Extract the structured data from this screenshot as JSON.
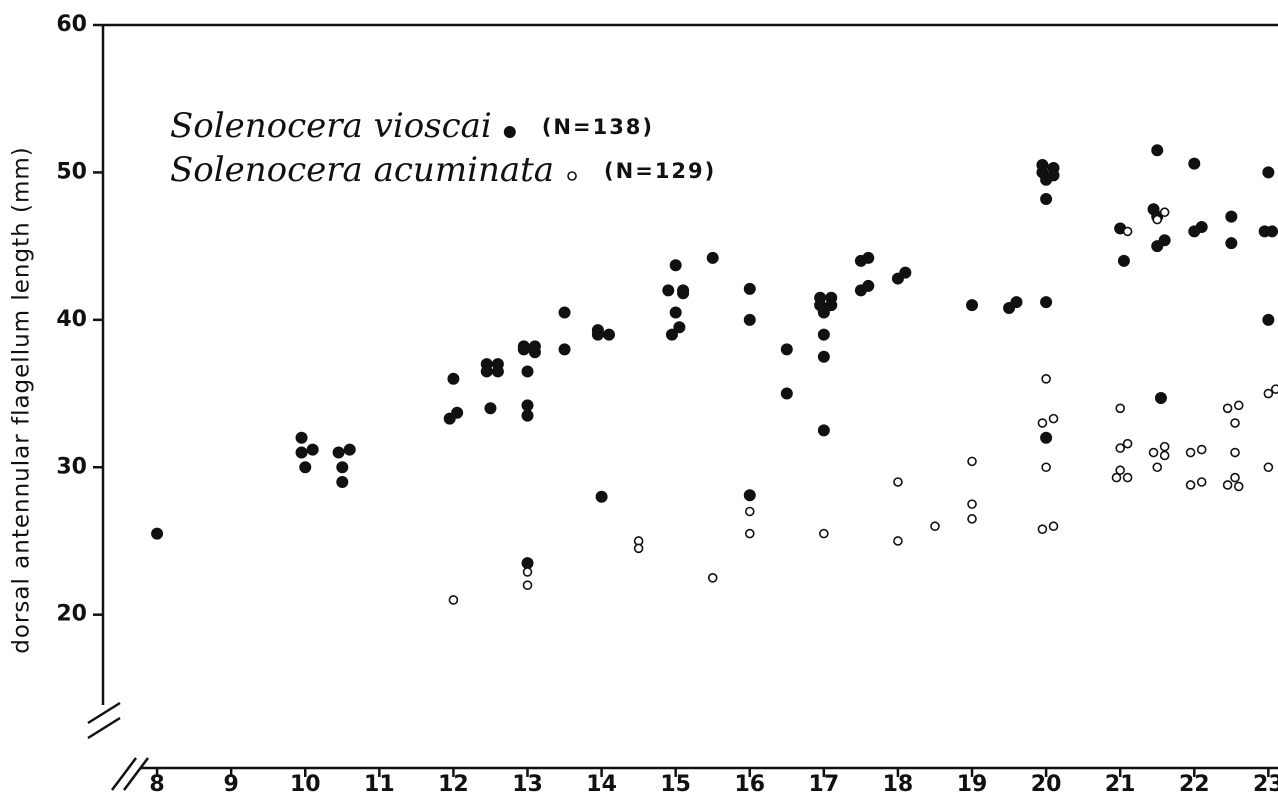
{
  "chart_data": {
    "type": "scatter",
    "y_label": "dorsal antennular flagellum length (mm)",
    "xlim": [
      7.27,
      23.13
    ],
    "ylim": [
      9.6,
      60
    ],
    "xticks": [
      8,
      9,
      10,
      11,
      12,
      13,
      14,
      15,
      16,
      17,
      18,
      19,
      20,
      21,
      22,
      23
    ],
    "yticks": [
      20,
      30,
      40,
      50,
      60
    ],
    "series": [
      {
        "name": "Solenocera vioscai",
        "n_label": "(N=138)",
        "color": "#111111",
        "marker": "filled",
        "x": [
          8,
          9.95,
          9.95,
          10,
          10.1,
          10.45,
          10.5,
          10.5,
          10.6,
          12,
          11.95,
          12.05,
          12.45,
          12.45,
          12.6,
          12.6,
          12.5,
          12.95,
          12.95,
          13.1,
          13.1,
          13,
          13,
          13,
          13,
          13.5,
          13.5,
          13.95,
          13.95,
          14.1,
          14,
          15,
          14.9,
          15.1,
          15.1,
          15,
          15.05,
          14.95,
          15.5,
          16,
          16,
          16,
          16.5,
          16.5,
          16.95,
          16.95,
          17,
          17.1,
          17.1,
          17,
          17,
          17,
          17.5,
          17.6,
          17.5,
          17.6,
          18,
          18.1,
          19,
          19.5,
          19.6,
          19.95,
          20.1,
          19.95,
          20.1,
          20,
          20,
          20,
          20,
          21,
          21.05,
          21.5,
          21.45,
          21.5,
          21.5,
          21.6,
          21.55,
          22,
          22,
          22.1,
          22.5,
          22.5,
          23,
          22.95,
          23.05,
          23
        ],
        "values": [
          25.5,
          32,
          31,
          30,
          31.2,
          31,
          30,
          29,
          31.2,
          36,
          33.3,
          33.7,
          37,
          36.5,
          37,
          36.5,
          34,
          38.2,
          38,
          38.2,
          37.8,
          36.5,
          34.2,
          33.5,
          23.5,
          40.5,
          38,
          39.3,
          39,
          39,
          28,
          43.7,
          42,
          41.8,
          42,
          40.5,
          39.5,
          39,
          44.2,
          42.1,
          40,
          28.1,
          38,
          35,
          41.5,
          41,
          40.5,
          41.5,
          41,
          39,
          37.5,
          32.5,
          44,
          44.2,
          42,
          42.3,
          42.8,
          43.2,
          41,
          40.8,
          41.2,
          50.5,
          50.3,
          50,
          49.8,
          49.5,
          48.2,
          41.2,
          32,
          46.2,
          44,
          51.5,
          47.5,
          47,
          45,
          45.4,
          34.7,
          50.6,
          46,
          46.3,
          47,
          45.2,
          50,
          46,
          46,
          40
        ]
      },
      {
        "name": "Solenocera acuminata",
        "n_label": "(N=129)",
        "color": "#111111",
        "marker": "open",
        "x": [
          12,
          13,
          13,
          14.5,
          14.5,
          15.5,
          16,
          16,
          17,
          18,
          18,
          18.5,
          19,
          19,
          19,
          20,
          19.95,
          20.1,
          20,
          20.1,
          19.95,
          21,
          21,
          21.1,
          21,
          20.95,
          21.1,
          21.1,
          21.45,
          21.6,
          21.6,
          21.5,
          21.6,
          21.5,
          21.95,
          22.1,
          21.95,
          22.1,
          22.45,
          22.6,
          22.55,
          22.55,
          22.55,
          22.45,
          22.6,
          23,
          23.1,
          23
        ],
        "values": [
          21,
          22.9,
          22,
          25,
          24.5,
          22.5,
          27,
          25.5,
          25.5,
          29,
          25,
          26,
          30.4,
          27.5,
          26.5,
          36,
          33,
          33.3,
          30,
          26,
          25.8,
          34,
          31.3,
          31.6,
          29.8,
          29.3,
          29.3,
          46,
          31,
          31.4,
          30.8,
          30,
          47.3,
          46.8,
          31,
          31.2,
          28.8,
          29,
          34,
          34.2,
          33,
          31,
          29.3,
          28.8,
          28.7,
          35,
          35.3,
          30
        ]
      }
    ]
  }
}
